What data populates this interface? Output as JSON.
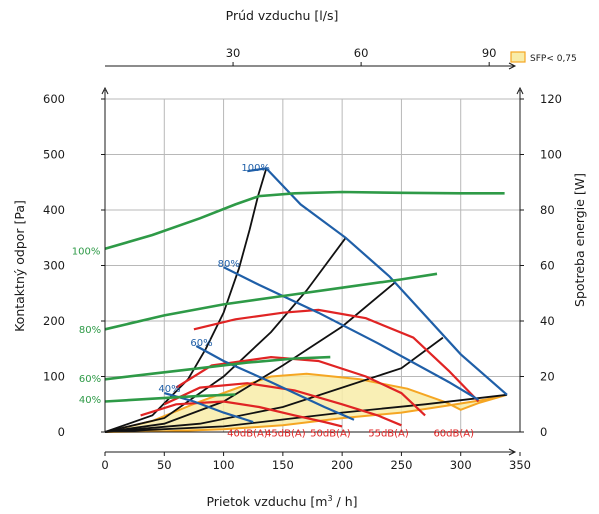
{
  "chart_data": {
    "type": "line",
    "xlabel_bottom_text": "Prietok vzduchu [m",
    "xlabel_bottom_sup": "3",
    "xlabel_bottom_tail": " / h]",
    "xlabel_top": "Prúd vzduchu [l/s]",
    "ylabel_left": "Kontaktný odpor [Pa]",
    "ylabel_right": "Spotreba energie  [W]",
    "legend": {
      "label": "SFP< 0,75",
      "fill": "#f8eca8",
      "stroke": "#f5a623"
    },
    "x_bottom": {
      "min": 0,
      "max": 350,
      "ticks": [
        0,
        50,
        100,
        150,
        200,
        250,
        300,
        350
      ]
    },
    "x_top": {
      "ticks": [
        30,
        60,
        90
      ],
      "unit_factor": 3.6
    },
    "y_left": {
      "min": 0,
      "max": 600,
      "ticks": [
        0,
        100,
        200,
        300,
        400,
        500,
        600
      ]
    },
    "y_right": {
      "min": 0,
      "max": 120,
      "ticks": [
        0,
        20,
        40,
        60,
        80,
        100,
        120
      ]
    },
    "colors": {
      "pressure": "#1f5fa8",
      "system": "#111111",
      "power": "#2e9a47",
      "noise": "#e02424",
      "region_fill": "#f8eca8",
      "region_stroke": "#f5a623"
    },
    "sfp_region": [
      [
        0,
        0
      ],
      [
        40,
        20
      ],
      [
        80,
        55
      ],
      [
        115,
        82
      ],
      [
        140,
        100
      ],
      [
        170,
        105
      ],
      [
        215,
        95
      ],
      [
        255,
        78
      ],
      [
        288,
        53
      ],
      [
        300,
        40
      ],
      [
        315,
        52
      ],
      [
        339,
        67
      ],
      [
        320,
        58
      ],
      [
        290,
        48
      ],
      [
        250,
        35
      ],
      [
        200,
        25
      ],
      [
        150,
        12
      ],
      [
        100,
        5
      ],
      [
        50,
        1
      ],
      [
        0,
        0
      ]
    ],
    "pressure_series": [
      {
        "name": "100%",
        "label": "100%",
        "label_at": [
          115,
          470
        ],
        "points": [
          [
            120,
            470
          ],
          [
            136,
            475
          ],
          [
            165,
            410
          ],
          [
            203,
            350
          ],
          [
            240,
            280
          ],
          [
            270,
            210
          ],
          [
            300,
            140
          ],
          [
            339,
            67
          ]
        ]
      },
      {
        "name": "80%",
        "label": "80%",
        "label_at": [
          95,
          297
        ],
        "points": [
          [
            100,
            297
          ],
          [
            130,
            265
          ],
          [
            180,
            215
          ],
          [
            230,
            160
          ],
          [
            290,
            90
          ],
          [
            315,
            58
          ]
        ]
      },
      {
        "name": "60%",
        "label": "60%",
        "label_at": [
          72,
          155
        ],
        "points": [
          [
            77,
            155
          ],
          [
            100,
            128
          ],
          [
            140,
            90
          ],
          [
            185,
            45
          ],
          [
            210,
            22
          ]
        ]
      },
      {
        "name": "40%",
        "label": "40%",
        "label_at": [
          45,
          72
        ],
        "points": [
          [
            50,
            70
          ],
          [
            75,
            55
          ],
          [
            100,
            35
          ],
          [
            125,
            18
          ]
        ]
      }
    ],
    "system_curves": [
      {
        "name": "k1",
        "points": [
          [
            0,
            0
          ],
          [
            40,
            30
          ],
          [
            70,
            95
          ],
          [
            85,
            150
          ],
          [
            100,
            215
          ],
          [
            113,
            295
          ],
          [
            122,
            365
          ],
          [
            129,
            425
          ],
          [
            136,
            475
          ]
        ]
      },
      {
        "name": "k2",
        "points": [
          [
            0,
            0
          ],
          [
            50,
            25
          ],
          [
            100,
            100
          ],
          [
            140,
            180
          ],
          [
            170,
            255
          ],
          [
            203,
            350
          ]
        ]
      },
      {
        "name": "k3",
        "points": [
          [
            0,
            0
          ],
          [
            50,
            15
          ],
          [
            100,
            55
          ],
          [
            150,
            120
          ],
          [
            200,
            190
          ],
          [
            245,
            270
          ]
        ]
      },
      {
        "name": "k4",
        "points": [
          [
            0,
            0
          ],
          [
            80,
            15
          ],
          [
            150,
            45
          ],
          [
            200,
            80
          ],
          [
            250,
            115
          ],
          [
            285,
            170
          ]
        ]
      },
      {
        "name": "k5",
        "points": [
          [
            0,
            0
          ],
          [
            100,
            10
          ],
          [
            200,
            35
          ],
          [
            270,
            50
          ],
          [
            339,
            67
          ]
        ]
      }
    ],
    "power_series": [
      {
        "name": "100%",
        "label": "100%",
        "label_at": [
          -28,
          320
        ],
        "points": [
          [
            0,
            66
          ],
          [
            40,
            71
          ],
          [
            80,
            77
          ],
          [
            110,
            82
          ],
          [
            130,
            85
          ],
          [
            160,
            86
          ],
          [
            200,
            86.5
          ],
          [
            250,
            86.2
          ],
          [
            300,
            86
          ],
          [
            337,
            86
          ]
        ]
      },
      {
        "name": "80%",
        "label": "80%",
        "label_at": [
          -22,
          178
        ],
        "points": [
          [
            0,
            37
          ],
          [
            50,
            42
          ],
          [
            100,
            46
          ],
          [
            150,
            49
          ],
          [
            200,
            52
          ],
          [
            250,
            55
          ],
          [
            280,
            57
          ]
        ]
      },
      {
        "name": "60%",
        "label": "60%",
        "label_at": [
          -22,
          90
        ],
        "points": [
          [
            0,
            19
          ],
          [
            40,
            21
          ],
          [
            80,
            23
          ],
          [
            120,
            25
          ],
          [
            160,
            26.5
          ],
          [
            190,
            27
          ]
        ]
      },
      {
        "name": "40%",
        "label": "40%",
        "label_at": [
          -22,
          52
        ],
        "points": [
          [
            0,
            11
          ],
          [
            40,
            12
          ],
          [
            80,
            13
          ],
          [
            110,
            13.5
          ]
        ]
      }
    ],
    "noise_series": [
      {
        "name": "40dB(A)",
        "label": "40dB(A)",
        "label_at": [
          103,
          -8
        ],
        "points": [
          [
            30,
            30
          ],
          [
            60,
            50
          ],
          [
            100,
            55
          ],
          [
            130,
            45
          ],
          [
            160,
            30
          ],
          [
            185,
            18
          ],
          [
            200,
            10
          ]
        ]
      },
      {
        "name": "45dB(A)",
        "label": "45dB(A)",
        "label_at": [
          135,
          -8
        ],
        "points": [
          [
            50,
            50
          ],
          [
            80,
            80
          ],
          [
            120,
            88
          ],
          [
            160,
            75
          ],
          [
            200,
            50
          ],
          [
            230,
            30
          ],
          [
            250,
            12
          ]
        ]
      },
      {
        "name": "50dB(A)",
        "label": "50dB(A)",
        "label_at": [
          173,
          -8
        ],
        "points": [
          [
            60,
            80
          ],
          [
            90,
            120
          ],
          [
            140,
            135
          ],
          [
            180,
            128
          ],
          [
            220,
            100
          ],
          [
            250,
            70
          ],
          [
            270,
            30
          ]
        ]
      },
      {
        "name": "55dB(A)",
        "label": "55dB(A)",
        "label_at": [
          222,
          -8
        ],
        "points": [
          [
            75,
            185
          ],
          [
            110,
            203
          ],
          [
            150,
            215
          ],
          [
            180,
            220
          ],
          [
            220,
            205
          ],
          [
            260,
            170
          ],
          [
            290,
            110
          ],
          [
            315,
            55
          ]
        ]
      },
      {
        "name": "60dB(A)",
        "label": "60dB(A)",
        "label_at": [
          277,
          -8
        ],
        "points": []
      }
    ]
  }
}
